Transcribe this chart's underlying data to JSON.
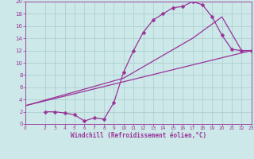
{
  "xlabel": "Windchill (Refroidissement éolien,°C)",
  "bg_color": "#cce8e8",
  "line_color": "#993399",
  "grid_color": "#aacccc",
  "xlim": [
    0,
    23
  ],
  "ylim": [
    0,
    20
  ],
  "xticks": [
    0,
    2,
    3,
    4,
    5,
    6,
    7,
    8,
    9,
    10,
    11,
    12,
    13,
    14,
    15,
    16,
    17,
    18,
    19,
    20,
    21,
    22,
    23
  ],
  "yticks": [
    0,
    2,
    4,
    6,
    8,
    10,
    12,
    14,
    16,
    18,
    20
  ],
  "line1_x": [
    2,
    3,
    4,
    5,
    6,
    7,
    8,
    9,
    10,
    11,
    12,
    13,
    14,
    15,
    16,
    17,
    18,
    19,
    20,
    21,
    22,
    23
  ],
  "line1_y": [
    2.0,
    2.0,
    1.8,
    1.5,
    0.5,
    1.0,
    0.8,
    3.5,
    8.5,
    12.0,
    15.0,
    17.0,
    18.0,
    19.0,
    19.2,
    20.0,
    19.5,
    17.5,
    14.5,
    12.2,
    12.0,
    12.0
  ],
  "line2_x": [
    0,
    23
  ],
  "line2_y": [
    3.0,
    12.0
  ],
  "line3_x": [
    0,
    10,
    17,
    20,
    22,
    23
  ],
  "line3_y": [
    3.0,
    7.5,
    14.0,
    17.5,
    12.0,
    12.0
  ]
}
